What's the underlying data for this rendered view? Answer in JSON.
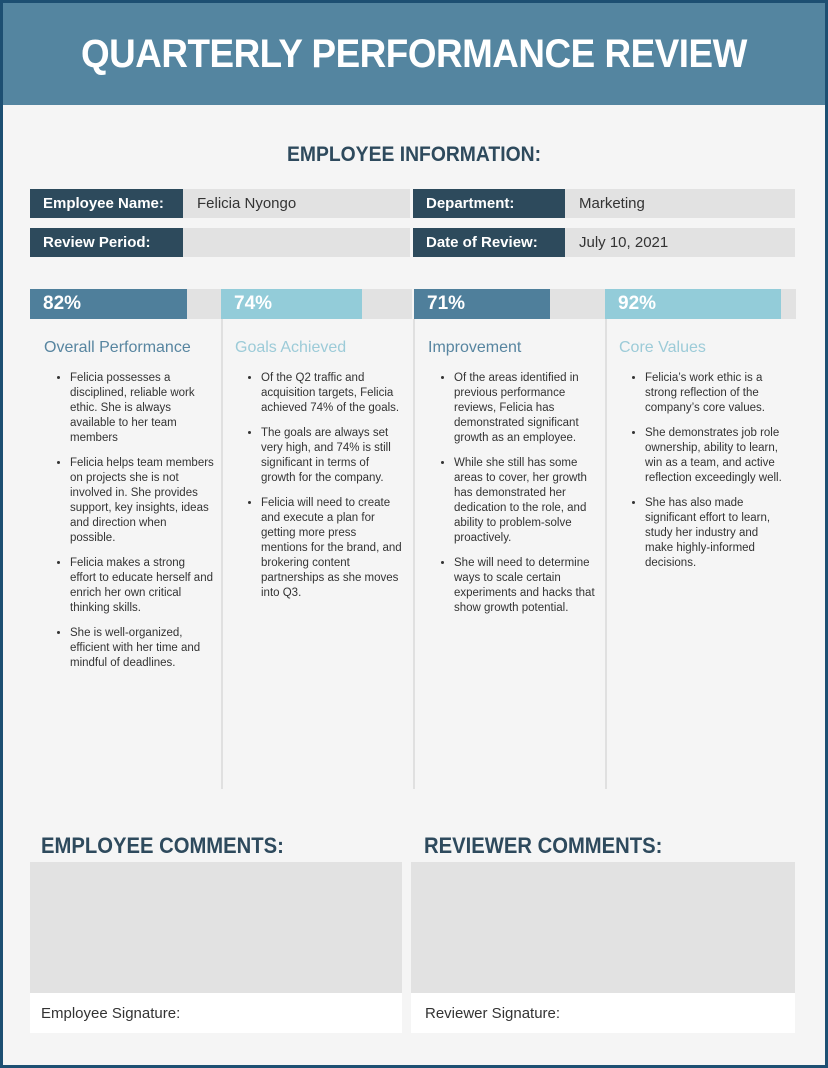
{
  "title": "QUARTERLY PERFORMANCE REVIEW",
  "employee_info": {
    "heading": "EMPLOYEE INFORMATION:",
    "name_label": "Employee Name:",
    "name_value": "Felicia Nyongo",
    "department_label": "Department:",
    "department_value": "Marketing",
    "period_label": "Review Period:",
    "period_value": "",
    "date_label": "Date of Review:",
    "date_value": "July 10, 2021"
  },
  "colors": {
    "header": "#5485a0",
    "dark": "#2d4a5c",
    "light_accent": "#93ccd9"
  },
  "metrics": [
    {
      "percent_label": "82%",
      "value": 82,
      "title": "Overall Performance",
      "color": "#4f7f9b",
      "title_color": "#5785a0",
      "bullets": [
        "Felicia possesses a disciplined, reliable work ethic. She is always available to her team members",
        "Felicia helps team members on projects she is not involved in. She provides support, key insights, ideas and direction when possible.",
        "Felicia makes a strong effort to educate herself and enrich her own critical thinking skills.",
        "She is well-organized, efficient with her time and mindful of deadlines."
      ]
    },
    {
      "percent_label": "74%",
      "value": 74,
      "title": "Goals Achieved",
      "color": "#93ccd9",
      "title_color": "#9ccbd8",
      "bullets": [
        "Of the Q2 traffic and acquisition targets, Felicia achieved 74% of the goals.",
        "The goals are always set very high, and 74% is still significant in terms of growth for the company.",
        "Felicia will need to create and execute a plan for getting more press mentions for the brand, and brokering content partnerships as she moves into Q3."
      ]
    },
    {
      "percent_label": "71%",
      "value": 71,
      "title": "Improvement",
      "color": "#4f7f9b",
      "title_color": "#5785a0",
      "bullets": [
        "Of the areas identified in previous performance reviews, Felicia has demonstrated significant growth as an employee.",
        "While she still has some areas to cover, her growth has demonstrated her dedication to the role, and ability to problem-solve proactively.",
        "She will need to determine ways to scale certain experiments and hacks that show growth potential."
      ]
    },
    {
      "percent_label": "92%",
      "value": 92,
      "title": "Core Values",
      "color": "#93ccd9",
      "title_color": "#9ccbd8",
      "bullets": [
        "Felicia’s work ethic is a strong reflection of the company’s core values.",
        "She demonstrates job role ownership, ability to learn, win as a team, and active reflection exceedingly well.",
        "She has also made significant effort to learn, study her industry and make highly-informed decisions."
      ]
    }
  ],
  "comments": {
    "employee_heading": "EMPLOYEE COMMENTS:",
    "reviewer_heading": "REVIEWER COMMENTS:",
    "employee_signature": "Employee Signature:",
    "reviewer_signature": "Reviewer Signature:"
  }
}
